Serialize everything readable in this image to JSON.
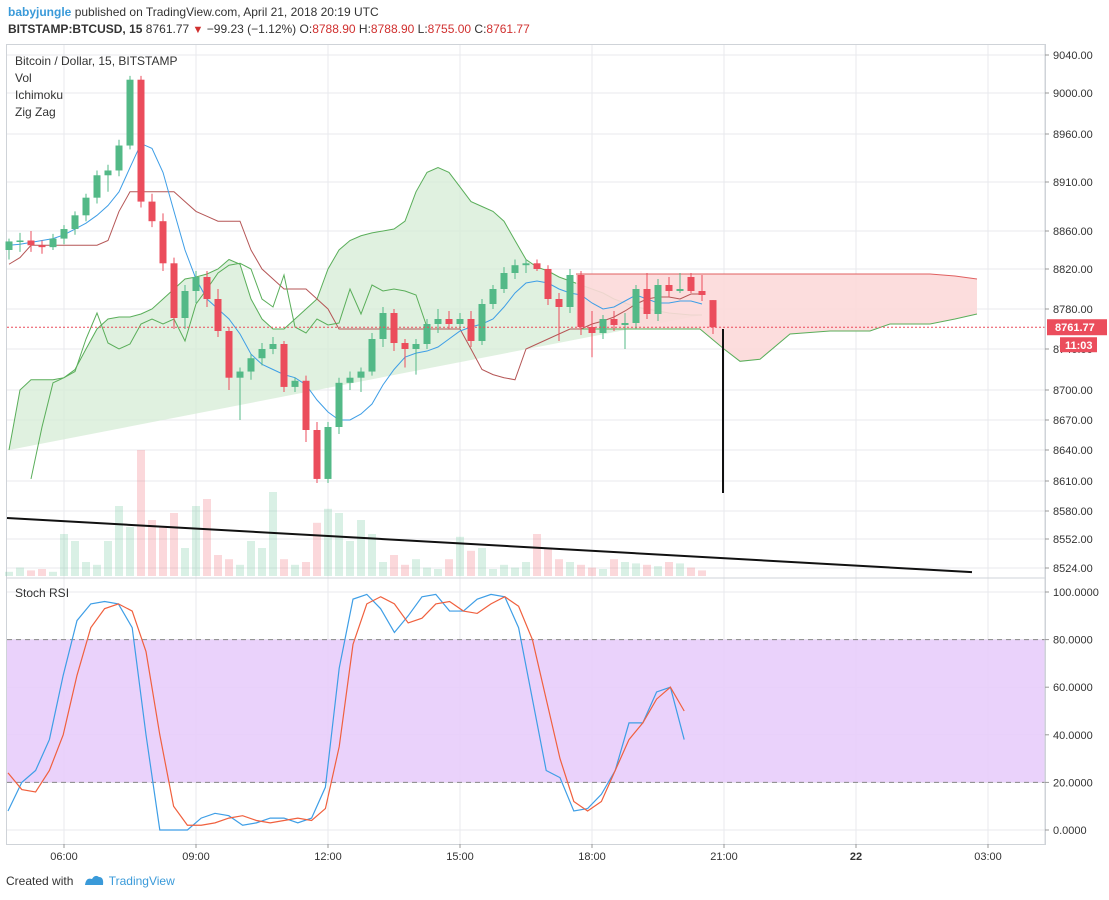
{
  "header": {
    "author": "babyjungle",
    "published_text": "published on TradingView.com, April 21, 2018 20:19 UTC",
    "symbol": "BITSTAMP:BTCUSD, 15",
    "last_price": "8761.77",
    "arrow": "▼",
    "change": "−99.23 (−1.12%)",
    "o_label": "O:",
    "o_value": "8788.90",
    "h_label": "H:",
    "h_value": "8788.90",
    "l_label": "L:",
    "l_value": "8755.00",
    "c_label": "C:",
    "c_value": "8761.77"
  },
  "legend": {
    "title": "Bitcoin / Dollar, 15, BITSTAMP",
    "items": [
      "Vol",
      "Ichimoku",
      "Zig Zag"
    ]
  },
  "rsi_title": "Stoch RSI",
  "price_badge": "8761.77",
  "time_badge": "11:03",
  "footer": {
    "created": "Created with",
    "brand": "TradingView"
  },
  "colors": {
    "up": "#53b987",
    "down": "#eb4d5c",
    "grid": "#e8eaed",
    "cloud_green": "#d5ecd5",
    "cloud_red": "#fcd9d9",
    "rsi_band": "#e8cdfb",
    "rsi_k": "#3e9ee6",
    "rsi_d": "#f0603e",
    "tenkan": "#3e9ee6",
    "kijun": "#b55656",
    "chikou": "#5aae5a"
  },
  "chart_data": [
    {
      "type": "candlestick",
      "title": "Bitcoin / Dollar, 15, BITSTAMP",
      "x_ticks": [
        "06:00",
        "09:00",
        "12:00",
        "15:00",
        "18:00",
        "21:00",
        "22",
        "03:00"
      ],
      "y_ticks": [
        8524,
        8552,
        8580,
        8610,
        8640,
        8670,
        8700,
        8740,
        8780,
        8820,
        8860,
        8910,
        8960,
        9000,
        9040
      ],
      "y_tick_labels": [
        "8524.00",
        "8552.00",
        "8580.00",
        "8610.00",
        "8640.00",
        "8670.00",
        "8700.00",
        "8740.00",
        "8780.00",
        "8820.00",
        "8860.00",
        "8910.00",
        "8960.00",
        "9000.00",
        "9040.00"
      ],
      "ylim": [
        8510,
        9050
      ],
      "scale": "log",
      "grid": true,
      "last_price": 8761.77,
      "candles": [
        [
          "04:45",
          8840,
          8852,
          8830,
          8849
        ],
        [
          "05:00",
          8849,
          8858,
          8838,
          8850
        ],
        [
          "05:15",
          8850,
          8860,
          8838,
          8845
        ],
        [
          "05:30",
          8845,
          8850,
          8836,
          8843
        ],
        [
          "05:45",
          8843,
          8857,
          8840,
          8852
        ],
        [
          "06:00",
          8852,
          8866,
          8846,
          8862
        ],
        [
          "06:15",
          8862,
          8880,
          8856,
          8876
        ],
        [
          "06:30",
          8876,
          8898,
          8870,
          8894
        ],
        [
          "06:45",
          8894,
          8922,
          8888,
          8917
        ],
        [
          "07:00",
          8917,
          8928,
          8900,
          8922
        ],
        [
          "07:15",
          8922,
          8954,
          8916,
          8948
        ],
        [
          "07:30",
          8948,
          9018,
          8944,
          9014
        ],
        [
          "07:45",
          9014,
          9018,
          8884,
          8890
        ],
        [
          "08:00",
          8890,
          8898,
          8864,
          8870
        ],
        [
          "08:15",
          8870,
          8878,
          8818,
          8826
        ],
        [
          "08:30",
          8826,
          8832,
          8760,
          8771
        ],
        [
          "08:45",
          8771,
          8804,
          8760,
          8798
        ],
        [
          "09:00",
          8798,
          8818,
          8786,
          8812
        ],
        [
          "09:15",
          8812,
          8818,
          8782,
          8790
        ],
        [
          "09:30",
          8790,
          8800,
          8752,
          8758
        ],
        [
          "09:45",
          8758,
          8762,
          8700,
          8712
        ],
        [
          "10:00",
          8712,
          8722,
          8670,
          8718
        ],
        [
          "10:15",
          8718,
          8735,
          8710,
          8731
        ],
        [
          "10:30",
          8731,
          8746,
          8724,
          8740
        ],
        [
          "10:45",
          8740,
          8752,
          8735,
          8745
        ],
        [
          "11:00",
          8745,
          8748,
          8698,
          8703
        ],
        [
          "11:15",
          8703,
          8712,
          8698,
          8709
        ],
        [
          "11:30",
          8709,
          8714,
          8648,
          8660
        ],
        [
          "11:45",
          8660,
          8668,
          8608,
          8612
        ],
        [
          "12:00",
          8612,
          8668,
          8608,
          8663
        ],
        [
          "12:15",
          8663,
          8712,
          8656,
          8707
        ],
        [
          "12:30",
          8707,
          8718,
          8700,
          8712
        ],
        [
          "12:45",
          8712,
          8722,
          8698,
          8718
        ],
        [
          "13:00",
          8718,
          8756,
          8714,
          8750
        ],
        [
          "13:15",
          8750,
          8782,
          8742,
          8776
        ],
        [
          "13:30",
          8776,
          8780,
          8738,
          8746
        ],
        [
          "13:45",
          8746,
          8750,
          8722,
          8740
        ],
        [
          "14:00",
          8740,
          8750,
          8715,
          8745
        ],
        [
          "14:15",
          8745,
          8770,
          8740,
          8765
        ],
        [
          "14:30",
          8765,
          8780,
          8756,
          8770
        ],
        [
          "14:45",
          8770,
          8778,
          8760,
          8765
        ],
        [
          "15:00",
          8765,
          8776,
          8760,
          8770
        ],
        [
          "15:15",
          8770,
          8778,
          8742,
          8748
        ],
        [
          "15:30",
          8748,
          8790,
          8744,
          8785
        ],
        [
          "15:45",
          8785,
          8804,
          8780,
          8800
        ],
        [
          "16:00",
          8800,
          8822,
          8796,
          8816
        ],
        [
          "16:15",
          8816,
          8830,
          8810,
          8824
        ],
        [
          "16:30",
          8824,
          8830,
          8816,
          8826
        ],
        [
          "16:45",
          8826,
          8830,
          8818,
          8820
        ],
        [
          "17:00",
          8820,
          8824,
          8784,
          8790
        ],
        [
          "17:15",
          8790,
          8796,
          8748,
          8782
        ],
        [
          "17:30",
          8782,
          8820,
          8776,
          8814
        ],
        [
          "17:45",
          8814,
          8818,
          8754,
          8762
        ],
        [
          "18:00",
          8762,
          8778,
          8732,
          8756
        ],
        [
          "18:15",
          8756,
          8774,
          8750,
          8770
        ],
        [
          "18:30",
          8770,
          8778,
          8758,
          8764
        ],
        [
          "18:45",
          8764,
          8776,
          8740,
          8766
        ],
        [
          "19:00",
          8766,
          8804,
          8760,
          8800
        ],
        [
          "19:15",
          8800,
          8816,
          8770,
          8775
        ],
        [
          "19:30",
          8775,
          8810,
          8768,
          8804
        ],
        [
          "19:45",
          8804,
          8812,
          8792,
          8798
        ],
        [
          "20:00",
          8798,
          8816,
          8796,
          8800
        ],
        [
          "20:15",
          8812,
          8816,
          8796,
          8798
        ],
        [
          "20:30",
          8798,
          8814,
          8788,
          8794
        ],
        [
          "20:45",
          8788.9,
          8788.9,
          8755,
          8761.77
        ]
      ],
      "volume": [
        3,
        6,
        4,
        5,
        3,
        30,
        25,
        10,
        8,
        25,
        50,
        35,
        90,
        40,
        35,
        45,
        20,
        50,
        55,
        15,
        12,
        8,
        25,
        20,
        60,
        12,
        8,
        10,
        38,
        48,
        45,
        25,
        40,
        30,
        10,
        15,
        8,
        12,
        6,
        5,
        12,
        28,
        18,
        20,
        5,
        8,
        6,
        10,
        30,
        20,
        12,
        10,
        8,
        6,
        5,
        12,
        10,
        9,
        8,
        7,
        10,
        9,
        6,
        4
      ],
      "ichimoku": {
        "tenkan": [
          8845,
          8846,
          8848,
          8850,
          8852,
          8856,
          8862,
          8868,
          8876,
          8886,
          8900,
          8925,
          8950,
          8945,
          8920,
          8880,
          8840,
          8810,
          8790,
          8780,
          8770,
          8755,
          8735,
          8725,
          8720,
          8715,
          8712,
          8705,
          8690,
          8678,
          8670,
          8670,
          8676,
          8686,
          8705,
          8720,
          8732,
          8736,
          8738,
          8742,
          8750,
          8758,
          8762,
          8765,
          8770,
          8782,
          8796,
          8806,
          8808,
          8806,
          8800,
          8796,
          8794,
          8786,
          8780,
          8782,
          8788,
          8794,
          8790,
          8786,
          8786,
          8788,
          8788,
          8785
        ],
        "kijun": [
          8825,
          8832,
          8845,
          8845,
          8845,
          8845,
          8845,
          8845,
          8845,
          8850,
          8880,
          8900,
          8900,
          8900,
          8900,
          8900,
          8890,
          8880,
          8875,
          8870,
          8870,
          8870,
          8840,
          8820,
          8810,
          8800,
          8800,
          8800,
          8790,
          8780,
          8760,
          8760,
          8760,
          8760,
          8760,
          8760,
          8760,
          8760,
          8760,
          8760,
          8760,
          8760,
          8740,
          8720,
          8715,
          8712,
          8710,
          8740,
          8745,
          8750,
          8755,
          8760,
          8760,
          8765,
          8768,
          8772,
          8778,
          8785,
          8790,
          8792,
          8792,
          8790,
          8795,
          8795
        ],
        "chikou_close": [
          8612,
          8663,
          8707,
          8712,
          8718,
          8750,
          8776,
          8746,
          8740,
          8745,
          8765,
          8770,
          8765,
          8770,
          8748,
          8785,
          8800,
          8816,
          8824,
          8826,
          8820,
          8790,
          8782,
          8814,
          8762,
          8756,
          8770,
          8764,
          8766,
          8800,
          8775,
          8804,
          8798,
          8800,
          8798,
          8794,
          8761.77
        ],
        "cloud": "green cloud below price through the session, red cloud (span B above span A) projected ahead between 8728 and 8815"
      },
      "zigzag_notes": "ZigZag indicator listed in legend",
      "trendline": "descending black line from about 8573 at the left edge to about 8520 at the right",
      "drawing": "vertical black line at about 21:00 from 8760 down to 8598"
    },
    {
      "type": "line",
      "title": "Stoch RSI",
      "y_ticks": [
        0,
        20,
        40,
        60,
        80,
        100
      ],
      "y_tick_labels": [
        "0.0000",
        "20.0000",
        "40.0000",
        "60.0000",
        "80.0000",
        "100.0000"
      ],
      "ylim": [
        -6,
        106
      ],
      "band": [
        20,
        80
      ],
      "series": [
        {
          "values": [
            8,
            20,
            25,
            38,
            65,
            88,
            95,
            96,
            95,
            85,
            40,
            0,
            0,
            0,
            5,
            7,
            6,
            2,
            3,
            5,
            5,
            3,
            5,
            18,
            68,
            97,
            99,
            93,
            83,
            90,
            98,
            99,
            92,
            92,
            97,
            99,
            98,
            85,
            55,
            25,
            22,
            8,
            9,
            15,
            25,
            45,
            45,
            58,
            60,
            38
          ]
        },
        {
          "values": [
            24,
            17,
            16,
            25,
            40,
            65,
            85,
            93,
            95,
            92,
            75,
            40,
            10,
            2,
            2,
            3,
            5,
            6,
            4,
            3,
            4,
            5,
            4,
            9,
            35,
            78,
            95,
            98,
            95,
            87,
            89,
            95,
            96,
            92,
            91,
            95,
            98,
            94,
            80,
            55,
            30,
            12,
            8,
            12,
            25,
            38,
            45,
            55,
            60,
            50
          ]
        }
      ]
    }
  ]
}
